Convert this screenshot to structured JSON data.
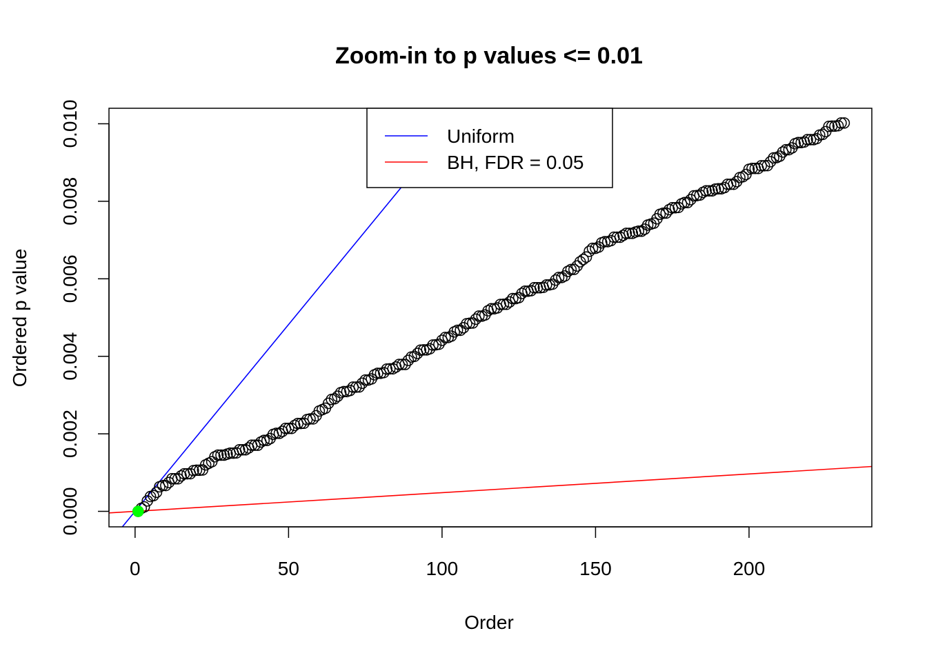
{
  "chart_data": {
    "type": "scatter",
    "title": "Zoom-in to p values <= 0.01",
    "xlabel": "Order",
    "ylabel": "Ordered p value",
    "xlim": [
      -8.5,
      240
    ],
    "ylim": [
      -0.0004,
      0.0104
    ],
    "x_ticks": [
      0,
      50,
      100,
      150,
      200
    ],
    "y_ticks": [
      0.0,
      0.002,
      0.004,
      0.006,
      0.008,
      0.01
    ],
    "x_tick_labels": [
      "0",
      "50",
      "100",
      "150",
      "200"
    ],
    "y_tick_labels": [
      "0.000",
      "0.002",
      "0.004",
      "0.006",
      "0.008",
      "0.010"
    ],
    "point_count": 231,
    "anchors": [
      [
        1,
        0.0
      ],
      [
        3,
        0.00015
      ],
      [
        5,
        0.00035
      ],
      [
        8,
        0.0006
      ],
      [
        12,
        0.0008
      ],
      [
        18,
        0.001
      ],
      [
        22,
        0.00108
      ],
      [
        26,
        0.0014
      ],
      [
        30,
        0.00145
      ],
      [
        36,
        0.0016
      ],
      [
        42,
        0.0018
      ],
      [
        46,
        0.002
      ],
      [
        52,
        0.0022
      ],
      [
        58,
        0.0024
      ],
      [
        62,
        0.0027
      ],
      [
        66,
        0.003
      ],
      [
        72,
        0.0032
      ],
      [
        78,
        0.0035
      ],
      [
        84,
        0.0037
      ],
      [
        88,
        0.0038
      ],
      [
        92,
        0.0041
      ],
      [
        96,
        0.0042
      ],
      [
        100,
        0.0044
      ],
      [
        104,
        0.0046
      ],
      [
        110,
        0.0049
      ],
      [
        116,
        0.0052
      ],
      [
        122,
        0.0054
      ],
      [
        128,
        0.0057
      ],
      [
        134,
        0.0058
      ],
      [
        140,
        0.0061
      ],
      [
        145,
        0.0064
      ],
      [
        148,
        0.0067
      ],
      [
        152,
        0.0069
      ],
      [
        158,
        0.0071
      ],
      [
        164,
        0.0072
      ],
      [
        168,
        0.0074
      ],
      [
        172,
        0.0077
      ],
      [
        178,
        0.0079
      ],
      [
        184,
        0.0082
      ],
      [
        190,
        0.0083
      ],
      [
        196,
        0.0085
      ],
      [
        200,
        0.0088
      ],
      [
        205,
        0.0089
      ],
      [
        210,
        0.0092
      ],
      [
        216,
        0.0095
      ],
      [
        222,
        0.0096
      ],
      [
        226,
        0.0099
      ],
      [
        231,
        0.01
      ]
    ],
    "highlight_points": [
      [
        1,
        0.0
      ]
    ],
    "series": [
      {
        "name": "Uniform",
        "color": "#0000ff",
        "line": {
          "intercept": 0,
          "slope": 9.64e-05
        }
      },
      {
        "name": "BH, FDR = 0.05",
        "color": "#ff0000",
        "line": {
          "intercept": 0,
          "slope": 4.82e-06
        }
      }
    ],
    "legend": {
      "placement": "top-center",
      "items": [
        "Uniform",
        "BH, FDR = 0.05"
      ]
    },
    "grid": false,
    "point_color": "#000000",
    "highlight_color": "#00ff00"
  }
}
